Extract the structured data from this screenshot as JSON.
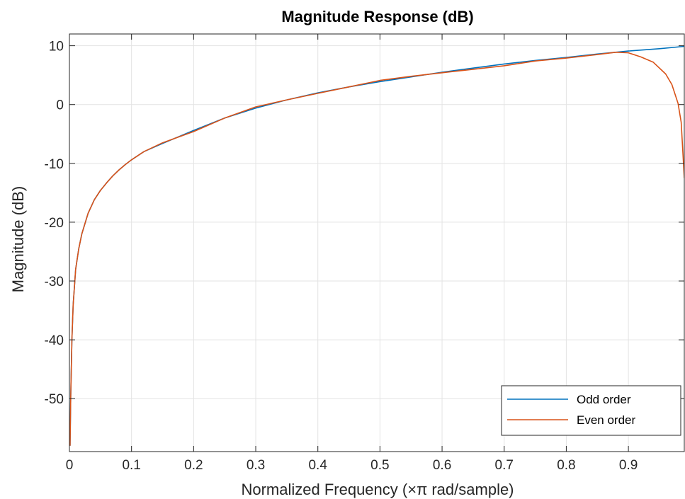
{
  "chart_data": {
    "type": "line",
    "title": "Magnitude Response (dB)",
    "xlabel": "Normalized Frequency (×π rad/sample)",
    "ylabel": "Magnitude (dB)",
    "xlim": [
      0,
      0.99
    ],
    "ylim": [
      -59,
      12
    ],
    "grid": true,
    "legend_position": "bottom-right",
    "xticks": [
      0,
      0.1,
      0.2,
      0.3,
      0.4,
      0.5,
      0.6,
      0.7,
      0.8,
      0.9
    ],
    "xtick_labels": [
      "0",
      "0.1",
      "0.2",
      "0.3",
      "0.4",
      "0.5",
      "0.6",
      "0.7",
      "0.8",
      "0.9"
    ],
    "yticks": [
      10,
      0,
      -10,
      -20,
      -30,
      -40,
      -50
    ],
    "ytick_labels": [
      "10",
      "0",
      "-10",
      "-20",
      "-30",
      "-40",
      "-50"
    ],
    "series": [
      {
        "name": "Odd order",
        "color": "#0072BD",
        "x": [
          0.001,
          0.002,
          0.004,
          0.006,
          0.01,
          0.015,
          0.02,
          0.03,
          0.04,
          0.05,
          0.06,
          0.07,
          0.08,
          0.09,
          0.1,
          0.12,
          0.15,
          0.2,
          0.25,
          0.3,
          0.35,
          0.4,
          0.45,
          0.5,
          0.55,
          0.6,
          0.65,
          0.7,
          0.75,
          0.8,
          0.85,
          0.9,
          0.95,
          0.99
        ],
        "y": [
          -58,
          -50,
          -40,
          -34,
          -28,
          -24.5,
          -22,
          -18.5,
          -16.2,
          -14.6,
          -13.3,
          -12.1,
          -11.1,
          -10.2,
          -9.4,
          -8.0,
          -6.6,
          -4.4,
          -2.3,
          -0.6,
          0.8,
          2.0,
          3.0,
          3.9,
          4.7,
          5.5,
          6.2,
          6.9,
          7.5,
          8.0,
          8.6,
          9.1,
          9.5,
          9.9
        ]
      },
      {
        "name": "Even order",
        "color": "#D95319",
        "x": [
          0.001,
          0.002,
          0.004,
          0.006,
          0.01,
          0.015,
          0.02,
          0.03,
          0.04,
          0.05,
          0.06,
          0.07,
          0.08,
          0.09,
          0.1,
          0.12,
          0.15,
          0.2,
          0.25,
          0.3,
          0.35,
          0.4,
          0.45,
          0.5,
          0.55,
          0.6,
          0.65,
          0.7,
          0.75,
          0.8,
          0.85,
          0.88,
          0.9,
          0.92,
          0.94,
          0.96,
          0.97,
          0.98,
          0.985,
          0.99
        ],
        "y": [
          -58,
          -50,
          -40,
          -34,
          -28,
          -24.5,
          -22,
          -18.5,
          -16.2,
          -14.6,
          -13.3,
          -12.1,
          -11.1,
          -10.2,
          -9.4,
          -8.0,
          -6.5,
          -4.6,
          -2.3,
          -0.4,
          0.8,
          1.9,
          3.0,
          4.1,
          4.8,
          5.4,
          6.0,
          6.6,
          7.4,
          7.9,
          8.5,
          8.9,
          8.8,
          8.1,
          7.2,
          5.2,
          3.4,
          0.2,
          -3.0,
          -12.5
        ]
      }
    ]
  }
}
